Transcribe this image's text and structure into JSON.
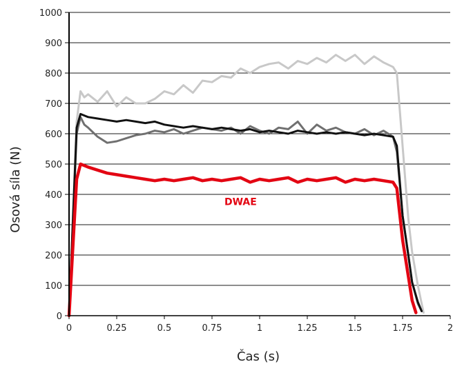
{
  "chart_data": {
    "type": "line",
    "title": "",
    "xlabel": "Čas (s)",
    "ylabel": "Osová síla (N)",
    "xlim": [
      0,
      2
    ],
    "ylim": [
      0,
      1000
    ],
    "xticks": [
      0,
      0.25,
      0.5,
      0.75,
      1,
      1.25,
      1.5,
      1.75,
      2
    ],
    "xtick_labels": [
      "0",
      "0.25",
      "0.5",
      "0.75",
      "1",
      "1.25",
      "1.5",
      "1.75",
      "2"
    ],
    "yticks": [
      0,
      100,
      200,
      300,
      400,
      500,
      600,
      700,
      800,
      900,
      1000
    ],
    "ytick_labels": [
      "0",
      "100",
      "200",
      "300",
      "400",
      "500",
      "600",
      "700",
      "800",
      "900",
      "1000"
    ],
    "grid": "horizontal",
    "annotation": {
      "text": "DWAE",
      "x": 0.9,
      "y": 360,
      "color": "#e30613"
    },
    "series": [
      {
        "color": "#c8c8c8",
        "x": [
          0,
          0.04,
          0.06,
          0.08,
          0.1,
          0.15,
          0.2,
          0.25,
          0.3,
          0.35,
          0.4,
          0.45,
          0.5,
          0.55,
          0.6,
          0.65,
          0.7,
          0.75,
          0.8,
          0.85,
          0.9,
          0.95,
          1.0,
          1.05,
          1.1,
          1.15,
          1.2,
          1.25,
          1.3,
          1.35,
          1.4,
          1.45,
          1.5,
          1.55,
          1.6,
          1.65,
          1.7,
          1.72,
          1.75,
          1.78,
          1.8,
          1.83,
          1.85,
          1.86
        ],
        "y": [
          0,
          640,
          740,
          720,
          730,
          705,
          740,
          690,
          720,
          700,
          700,
          715,
          740,
          730,
          760,
          735,
          775,
          770,
          790,
          785,
          815,
          800,
          820,
          830,
          835,
          815,
          840,
          830,
          850,
          835,
          860,
          840,
          860,
          830,
          855,
          835,
          820,
          800,
          560,
          320,
          210,
          100,
          40,
          10
        ]
      },
      {
        "color": "#707070",
        "x": [
          0,
          0.04,
          0.06,
          0.08,
          0.1,
          0.15,
          0.2,
          0.25,
          0.3,
          0.35,
          0.4,
          0.45,
          0.5,
          0.55,
          0.6,
          0.65,
          0.7,
          0.75,
          0.8,
          0.85,
          0.9,
          0.95,
          1.0,
          1.05,
          1.1,
          1.15,
          1.2,
          1.25,
          1.3,
          1.35,
          1.4,
          1.45,
          1.5,
          1.55,
          1.6,
          1.65,
          1.7,
          1.72,
          1.75,
          1.78,
          1.8,
          1.83,
          1.85
        ],
        "y": [
          0,
          600,
          655,
          630,
          620,
          590,
          570,
          575,
          585,
          595,
          600,
          610,
          605,
          615,
          600,
          610,
          620,
          615,
          610,
          620,
          600,
          625,
          610,
          600,
          620,
          615,
          640,
          600,
          630,
          610,
          620,
          605,
          600,
          615,
          595,
          610,
          590,
          540,
          330,
          200,
          110,
          40,
          15
        ]
      },
      {
        "color": "#111111",
        "x": [
          0,
          0.04,
          0.06,
          0.08,
          0.1,
          0.15,
          0.2,
          0.25,
          0.3,
          0.35,
          0.4,
          0.45,
          0.5,
          0.55,
          0.6,
          0.65,
          0.7,
          0.75,
          0.8,
          0.85,
          0.9,
          0.95,
          1.0,
          1.05,
          1.1,
          1.15,
          1.2,
          1.25,
          1.3,
          1.35,
          1.4,
          1.45,
          1.5,
          1.55,
          1.6,
          1.65,
          1.7,
          1.72,
          1.75,
          1.78,
          1.8,
          1.83,
          1.85
        ],
        "y": [
          0,
          620,
          665,
          660,
          655,
          650,
          645,
          640,
          645,
          640,
          635,
          640,
          630,
          625,
          620,
          625,
          620,
          615,
          620,
          615,
          610,
          615,
          605,
          610,
          605,
          600,
          610,
          605,
          600,
          605,
          600,
          605,
          600,
          595,
          600,
          595,
          590,
          560,
          330,
          200,
          110,
          45,
          15
        ]
      },
      {
        "color": "#e30613",
        "x": [
          0,
          0.04,
          0.06,
          0.08,
          0.1,
          0.15,
          0.2,
          0.25,
          0.3,
          0.35,
          0.4,
          0.45,
          0.5,
          0.55,
          0.6,
          0.65,
          0.7,
          0.75,
          0.8,
          0.85,
          0.9,
          0.95,
          1.0,
          1.05,
          1.1,
          1.15,
          1.2,
          1.25,
          1.3,
          1.35,
          1.4,
          1.45,
          1.5,
          1.55,
          1.6,
          1.65,
          1.7,
          1.72,
          1.75,
          1.78,
          1.8,
          1.82
        ],
        "y": [
          0,
          450,
          500,
          495,
          490,
          480,
          470,
          465,
          460,
          455,
          450,
          445,
          450,
          445,
          450,
          455,
          445,
          450,
          445,
          450,
          455,
          440,
          450,
          445,
          450,
          455,
          440,
          450,
          445,
          450,
          455,
          440,
          450,
          445,
          450,
          445,
          440,
          420,
          250,
          130,
          50,
          10
        ]
      }
    ]
  }
}
